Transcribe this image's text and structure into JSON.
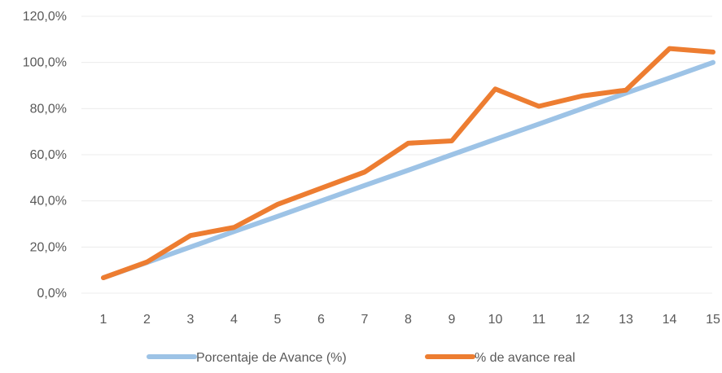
{
  "chart_data": {
    "type": "line",
    "title": "",
    "xlabel": "",
    "ylabel": "",
    "x": [
      1,
      2,
      3,
      4,
      5,
      6,
      7,
      8,
      9,
      10,
      11,
      12,
      13,
      14,
      15
    ],
    "x_tick_labels": [
      "1",
      "2",
      "3",
      "4",
      "5",
      "6",
      "7",
      "8",
      "9",
      "10",
      "11",
      "12",
      "13",
      "14",
      "15"
    ],
    "y_tick_labels": [
      "0,0%",
      "20,0%",
      "40,0%",
      "60,0%",
      "80,0%",
      "100,0%",
      "120,0%"
    ],
    "y_ticks": [
      0,
      20,
      40,
      60,
      80,
      100,
      120
    ],
    "ylim": [
      0,
      120
    ],
    "grid": true,
    "legend_position": "bottom",
    "series": [
      {
        "name": "Porcentaje de Avance (%)",
        "color": "#9dc3e6",
        "values": [
          6.7,
          13.3,
          20.0,
          26.7,
          33.3,
          40.0,
          46.7,
          53.3,
          60.0,
          66.7,
          73.3,
          80.0,
          86.7,
          93.3,
          100.0
        ]
      },
      {
        "name": "% de avance real",
        "color": "#ed7d31",
        "values": [
          6.7,
          13.5,
          25.0,
          28.5,
          38.5,
          45.5,
          52.5,
          65.0,
          66.0,
          88.5,
          81.0,
          85.5,
          88.0,
          106.0,
          104.5
        ]
      }
    ]
  }
}
